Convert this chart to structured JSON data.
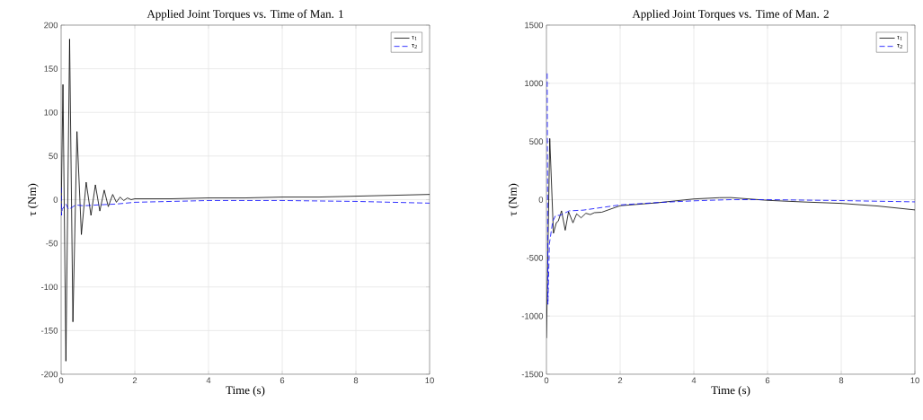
{
  "chart_data": [
    {
      "type": "line",
      "title": "Applied Joint Torques vs. Time of Man. 1",
      "xlabel": "Time (s)",
      "ylabel": "τ (Nm)",
      "xlim": [
        0,
        10
      ],
      "ylim": [
        -200,
        200
      ],
      "xticks": [
        0,
        2,
        4,
        6,
        8,
        10
      ],
      "yticks": [
        -200,
        -150,
        -100,
        -50,
        0,
        50,
        100,
        150,
        200
      ],
      "grid": true,
      "legend": "top right",
      "series": [
        {
          "name": "τ$_{1}$",
          "color": "#000000",
          "line_style": "solid",
          "x": [
            0,
            0.05,
            0.13,
            0.23,
            0.32,
            0.43,
            0.55,
            0.68,
            0.81,
            0.93,
            1.05,
            1.17,
            1.28,
            1.4,
            1.5,
            1.6,
            1.7,
            1.8,
            1.9,
            2,
            2.2,
            2.5,
            3,
            4,
            5,
            6,
            7,
            8,
            9,
            10
          ],
          "values": [
            -18,
            132,
            -185,
            184,
            -140,
            78,
            -40,
            20,
            -18,
            17,
            -13,
            11,
            -8,
            6,
            -3,
            3,
            -1,
            2,
            0,
            1,
            1,
            1,
            1,
            2,
            2,
            3,
            3,
            4,
            5,
            6
          ]
        },
        {
          "name": "τ$_{2}$",
          "color": "#0000ff",
          "line_style": "dashed",
          "x": [
            0,
            0.01,
            0.03,
            0.13,
            0.2,
            0.25,
            0.4,
            0.6,
            1,
            1.5,
            2,
            3,
            4,
            6,
            8,
            10
          ],
          "values": [
            14,
            -18,
            -11,
            -5,
            -11,
            -10,
            -6,
            -7,
            -6,
            -5,
            -3,
            -2,
            -1,
            -1,
            -2,
            -4
          ]
        }
      ]
    },
    {
      "type": "line",
      "title": "Applied Joint Torques vs. Time of Man. 2",
      "xlabel": "Time (s)",
      "ylabel": "τ (Nm)",
      "xlim": [
        0,
        10
      ],
      "ylim": [
        -1500,
        1500
      ],
      "xticks": [
        0,
        2,
        4,
        6,
        8,
        10
      ],
      "yticks": [
        -1500,
        -1000,
        -500,
        0,
        500,
        1000,
        1500
      ],
      "grid": true,
      "legend": "top right",
      "series": [
        {
          "name": "τ$_{1}$",
          "color": "#000000",
          "line_style": "solid",
          "x": [
            0,
            0.09,
            0.19,
            0.27,
            0.32,
            0.41,
            0.51,
            0.6,
            0.72,
            0.82,
            0.94,
            1.07,
            1.19,
            1.3,
            1.5,
            2,
            3,
            4,
            4.7,
            5,
            6,
            7,
            8,
            9,
            10
          ],
          "values": [
            -1190,
            526,
            -289,
            -197,
            -185,
            -96,
            -263,
            -104,
            -199,
            -122,
            -156,
            -117,
            -128,
            -112,
            -108,
            -52,
            -27,
            6,
            17,
            18,
            -6,
            -20,
            -32,
            -55,
            -88
          ]
        },
        {
          "name": "τ$_{2}$",
          "color": "#0000ff",
          "line_style": "dashed",
          "x": [
            0.02,
            0.04,
            0.08,
            0.17,
            0.25,
            0.37,
            0.62,
            1,
            2,
            3,
            4,
            5,
            6,
            8,
            10
          ],
          "values": [
            1085,
            -900,
            -379,
            -187,
            -135,
            -135,
            -96,
            -90,
            -45,
            -25,
            -10,
            0,
            0,
            -8,
            -19
          ]
        }
      ]
    }
  ]
}
